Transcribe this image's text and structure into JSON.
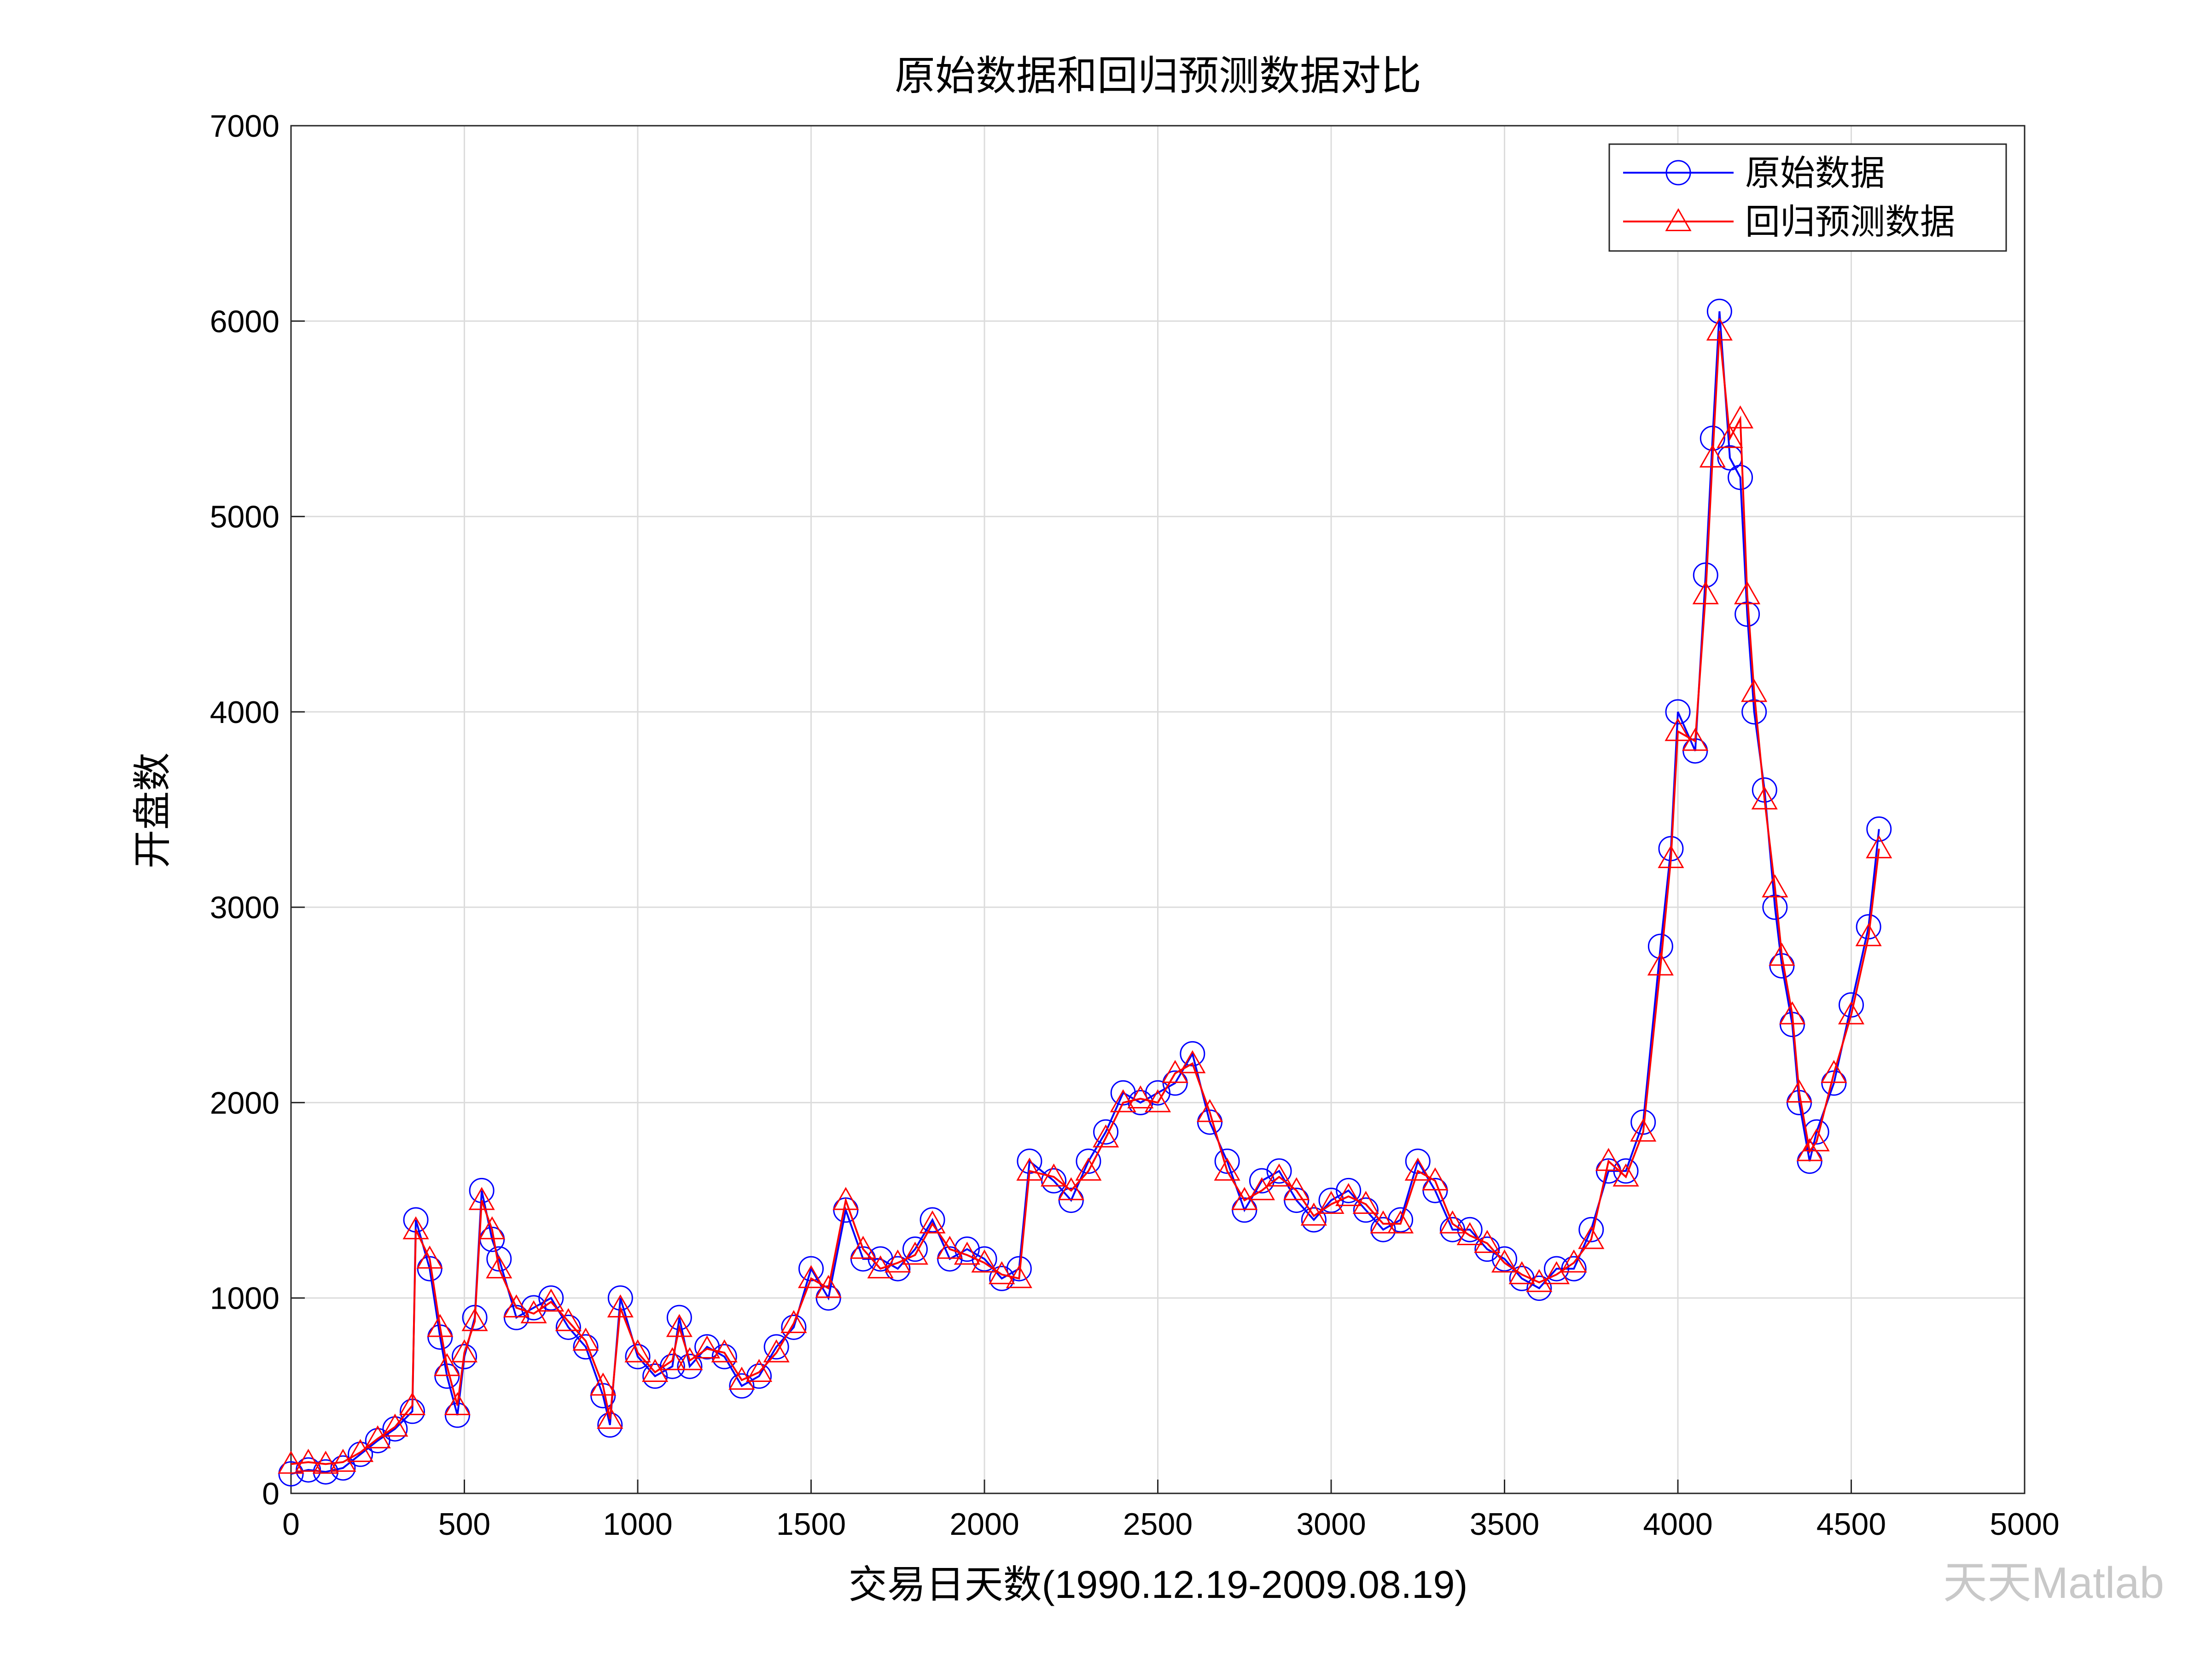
{
  "chart_data": {
    "type": "line",
    "title": "原始数据和回归预测数据对比",
    "xlabel": "交易日天数(1990.12.19-2009.08.19)",
    "ylabel": "开盘数",
    "watermark": "天天Matlab",
    "x": [
      0,
      50,
      100,
      150,
      200,
      250,
      300,
      350,
      360,
      400,
      430,
      450,
      480,
      500,
      530,
      550,
      580,
      600,
      650,
      700,
      750,
      800,
      850,
      900,
      920,
      950,
      1000,
      1050,
      1100,
      1120,
      1150,
      1200,
      1250,
      1300,
      1350,
      1400,
      1450,
      1500,
      1550,
      1600,
      1650,
      1700,
      1750,
      1800,
      1850,
      1900,
      1950,
      2000,
      2050,
      2100,
      2130,
      2200,
      2250,
      2300,
      2350,
      2400,
      2450,
      2500,
      2550,
      2600,
      2650,
      2700,
      2750,
      2800,
      2850,
      2900,
      2950,
      3000,
      3050,
      3100,
      3150,
      3200,
      3250,
      3300,
      3350,
      3400,
      3450,
      3500,
      3550,
      3600,
      3650,
      3700,
      3750,
      3800,
      3850,
      3900,
      3950,
      3980,
      4000,
      4050,
      4080,
      4100,
      4120,
      4150,
      4180,
      4200,
      4220,
      4250,
      4280,
      4300,
      4330,
      4350,
      4380,
      4400,
      4450,
      4500,
      4550,
      4580
    ],
    "series": [
      {
        "name": "原始数据",
        "color": "#0000ff",
        "marker": "circle",
        "values": [
          100,
          120,
          110,
          130,
          200,
          270,
          330,
          420,
          1400,
          1150,
          800,
          600,
          400,
          700,
          900,
          1550,
          1300,
          1200,
          900,
          950,
          1000,
          850,
          750,
          500,
          350,
          1000,
          700,
          600,
          650,
          900,
          650,
          750,
          700,
          550,
          600,
          750,
          850,
          1150,
          1000,
          1450,
          1200,
          1200,
          1150,
          1250,
          1400,
          1200,
          1250,
          1200,
          1100,
          1150,
          1700,
          1600,
          1500,
          1700,
          1850,
          2050,
          2000,
          2050,
          2100,
          2250,
          1900,
          1700,
          1450,
          1600,
          1650,
          1500,
          1400,
          1500,
          1550,
          1450,
          1350,
          1400,
          1700,
          1550,
          1350,
          1350,
          1250,
          1200,
          1100,
          1050,
          1150,
          1150,
          1350,
          1650,
          1650,
          1900,
          2800,
          3300,
          4000,
          3800,
          4700,
          5400,
          6050,
          5300,
          5200,
          4500,
          4000,
          3600,
          3000,
          2700,
          2400,
          2000,
          1700,
          1850,
          2100,
          2500,
          2900,
          3400
        ]
      },
      {
        "name": "回归预测数据",
        "color": "#ff0000",
        "marker": "triangle",
        "values": [
          150,
          160,
          150,
          160,
          210,
          280,
          340,
          450,
          1350,
          1200,
          850,
          650,
          450,
          720,
          880,
          1500,
          1350,
          1150,
          950,
          920,
          980,
          880,
          780,
          550,
          380,
          950,
          720,
          620,
          680,
          850,
          680,
          740,
          720,
          580,
          620,
          720,
          870,
          1100,
          1050,
          1500,
          1250,
          1150,
          1180,
          1220,
          1380,
          1250,
          1220,
          1180,
          1120,
          1100,
          1650,
          1620,
          1550,
          1650,
          1820,
          2000,
          2020,
          2000,
          2150,
          2200,
          1950,
          1650,
          1500,
          1550,
          1620,
          1550,
          1420,
          1480,
          1520,
          1480,
          1380,
          1380,
          1650,
          1600,
          1380,
          1320,
          1280,
          1180,
          1120,
          1080,
          1120,
          1180,
          1300,
          1700,
          1620,
          1850,
          2700,
          3250,
          3900,
          3850,
          4600,
          5300,
          5950,
          5400,
          5500,
          4600,
          4100,
          3550,
          3100,
          2750,
          2450,
          2050,
          1750,
          1800,
          2150,
          2450,
          2850,
          3300
        ]
      }
    ],
    "xlim": [
      0,
      5000
    ],
    "xticks": [
      0,
      500,
      1000,
      1500,
      2000,
      2500,
      3000,
      3500,
      4000,
      4500,
      5000
    ],
    "ylim": [
      0,
      7000
    ],
    "yticks": [
      0,
      1000,
      2000,
      3000,
      4000,
      5000,
      6000,
      7000
    ],
    "grid": true,
    "legend": "upper right"
  }
}
